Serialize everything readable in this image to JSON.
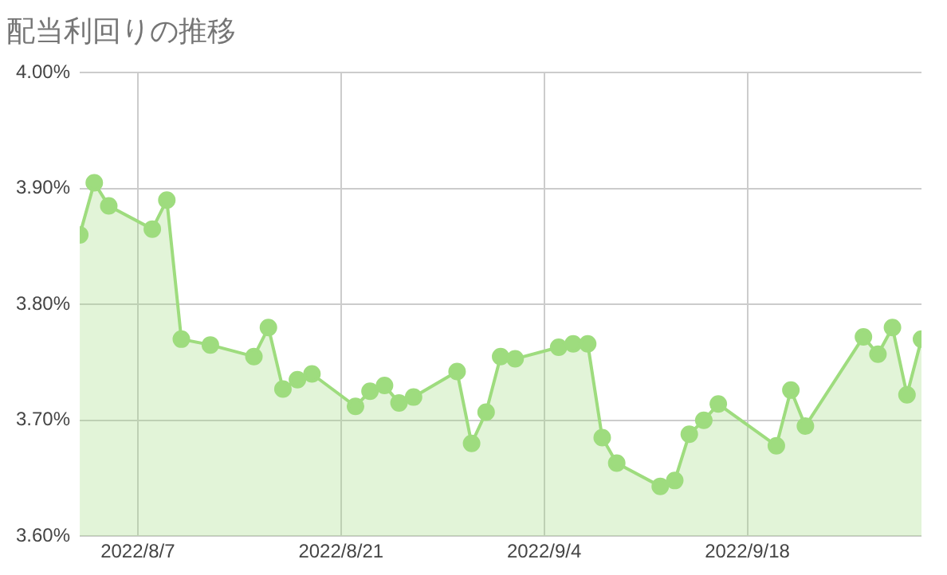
{
  "chart_data": {
    "type": "area",
    "title": "配当利回りの推移",
    "x": [
      "2022-08-03",
      "2022-08-04",
      "2022-08-05",
      "2022-08-08",
      "2022-08-09",
      "2022-08-10",
      "2022-08-12",
      "2022-08-15",
      "2022-08-16",
      "2022-08-17",
      "2022-08-18",
      "2022-08-19",
      "2022-08-22",
      "2022-08-23",
      "2022-08-24",
      "2022-08-25",
      "2022-08-26",
      "2022-08-29",
      "2022-08-30",
      "2022-08-31",
      "2022-09-01",
      "2022-09-02",
      "2022-09-05",
      "2022-09-06",
      "2022-09-07",
      "2022-09-08",
      "2022-09-09",
      "2022-09-12",
      "2022-09-13",
      "2022-09-14",
      "2022-09-15",
      "2022-09-16",
      "2022-09-20",
      "2022-09-21",
      "2022-09-22",
      "2022-09-26",
      "2022-09-27",
      "2022-09-28",
      "2022-09-29",
      "2022-09-30"
    ],
    "series": [
      {
        "color": "#9edc7e",
        "values": [
          3.86,
          3.905,
          3.885,
          3.865,
          3.89,
          3.77,
          3.765,
          3.755,
          3.78,
          3.727,
          3.735,
          3.74,
          3.712,
          3.725,
          3.73,
          3.715,
          3.72,
          3.742,
          3.68,
          3.707,
          3.755,
          3.753,
          3.763,
          3.766,
          3.766,
          3.685,
          3.663,
          3.643,
          3.648,
          3.688,
          3.7,
          3.714,
          3.678,
          3.726,
          3.695,
          3.772,
          3.757,
          3.78,
          3.722,
          3.77
        ]
      }
    ],
    "xlim": [
      "2022-08-03",
      "2022-09-30"
    ],
    "xticks": [
      {
        "value": "2022-08-07",
        "label": "2022/8/7"
      },
      {
        "value": "2022-08-21",
        "label": "2022/8/21"
      },
      {
        "value": "2022-09-04",
        "label": "2022/9/4"
      },
      {
        "value": "2022-09-18",
        "label": "2022/9/18"
      }
    ],
    "ylim": [
      3.6,
      4.0
    ],
    "yticks": [
      {
        "value": 3.6,
        "label": "3.60%"
      },
      {
        "value": 3.7,
        "label": "3.70%"
      },
      {
        "value": 3.8,
        "label": "3.80%"
      },
      {
        "value": 3.9,
        "label": "3.90%"
      },
      {
        "value": 4.0,
        "label": "4.00%"
      }
    ],
    "grid": true,
    "marker": "circle",
    "legend": false
  }
}
